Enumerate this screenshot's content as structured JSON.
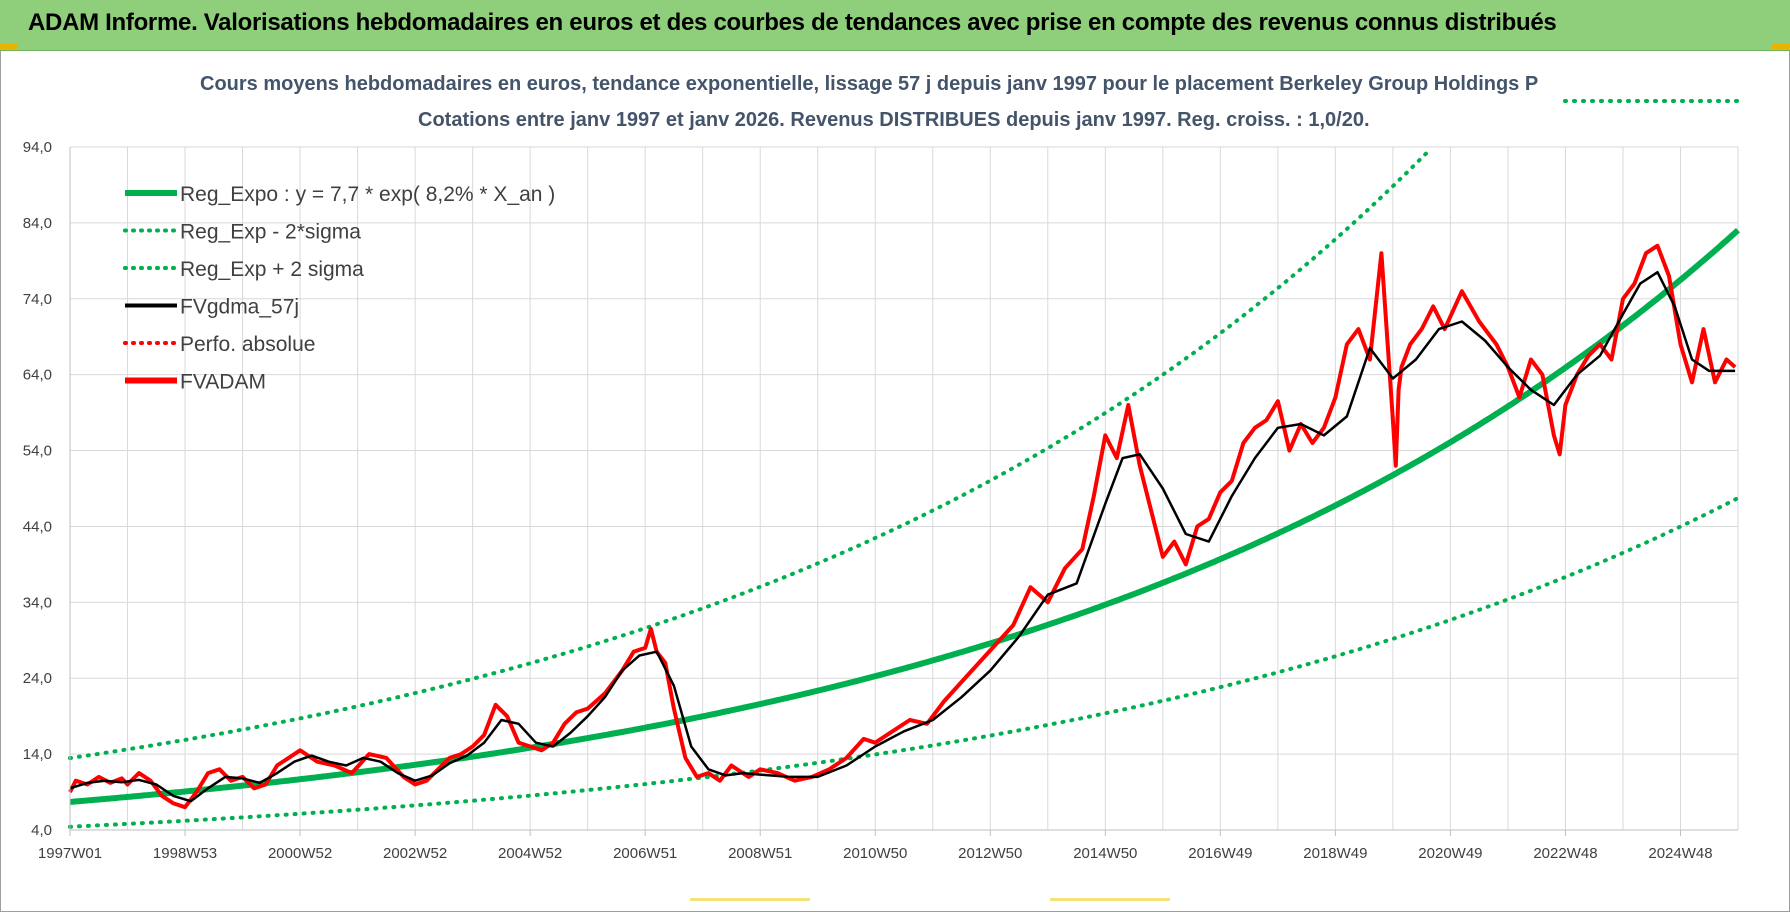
{
  "header": {
    "title": "ADAM Informe. Valorisations hebdomadaires en euros et des courbes de tendances avec prise en compte des revenus connus distribués"
  },
  "colors": {
    "header_bg": "#8fce7a",
    "reg_expo": "#00b050",
    "fvgdma": "#000000",
    "fvadam": "#ff0000",
    "title_text": "#44546a"
  },
  "chart_data": {
    "type": "line",
    "title_line1": "Cours moyens hebdomadaires en euros, tendance exponentielle, lissage 57 j depuis janv 1997  pour le placement Berkeley Group Holdings P",
    "title_line2": "Cotations entre janv 1997 et janv 2026. Revenus DISTRIBUES depuis janv 1997.  Reg. croiss. : 1,0/20.",
    "ylim": [
      4,
      94
    ],
    "yticks": [
      "4,0",
      "14,0",
      "24,0",
      "34,0",
      "44,0",
      "54,0",
      "64,0",
      "74,0",
      "84,0",
      "94,0"
    ],
    "xlim": [
      1997.0,
      2026.0
    ],
    "xtick_labels": [
      "1997W01",
      "1998W53",
      "2000W52",
      "2002W52",
      "2004W52",
      "2006W51",
      "2008W51",
      "2010W50",
      "2012W50",
      "2014W50",
      "2016W49",
      "2018W49",
      "2020W49",
      "2022W48",
      "2024W48"
    ],
    "xtick_years": [
      1997.0,
      1999.0,
      2001.0,
      2003.0,
      2005.0,
      2007.0,
      2009.0,
      2011.0,
      2013.0,
      2015.0,
      2017.0,
      2019.0,
      2021.0,
      2023.0,
      2025.0
    ],
    "grid": true,
    "legend_position": "top-left",
    "legend": [
      {
        "label": "Reg_Expo : y = 7,7 * exp( 8,2% *  X_an )",
        "style": "solid-thick",
        "color": "#00b050"
      },
      {
        "label": "Reg_Exp - 2*sigma",
        "style": "dotted",
        "color": "#00b050"
      },
      {
        "label": "Reg_Exp + 2 sigma",
        "style": "dotted",
        "color": "#00b050"
      },
      {
        "label": "FVgdma_57j",
        "style": "solid",
        "color": "#000000"
      },
      {
        "label": "Perfo. absolue",
        "style": "dotted",
        "color": "#ff0000"
      },
      {
        "label": "FVADAM",
        "style": "solid-thick",
        "color": "#ff0000"
      }
    ],
    "regression": {
      "a": 7.7,
      "rate": 0.082,
      "upper_factor": 1.75,
      "lower_factor": 0.575
    },
    "series": [
      {
        "name": "FVADAM",
        "x": [
          1997.0,
          1997.1,
          1997.3,
          1997.5,
          1997.7,
          1997.9,
          1998.0,
          1998.2,
          1998.4,
          1998.6,
          1998.8,
          1999.0,
          1999.2,
          1999.4,
          1999.6,
          1999.8,
          2000.0,
          2000.2,
          2000.4,
          2000.6,
          2000.8,
          2001.0,
          2001.3,
          2001.6,
          2001.9,
          2002.2,
          2002.5,
          2002.8,
          2003.0,
          2003.2,
          2003.4,
          2003.6,
          2003.8,
          2004.0,
          2004.2,
          2004.4,
          2004.6,
          2004.8,
          2005.0,
          2005.2,
          2005.4,
          2005.6,
          2005.8,
          2006.0,
          2006.3,
          2006.6,
          2006.8,
          2007.0,
          2007.1,
          2007.2,
          2007.35,
          2007.5,
          2007.7,
          2007.9,
          2008.1,
          2008.3,
          2008.5,
          2008.8,
          2009.0,
          2009.3,
          2009.6,
          2009.9,
          2010.2,
          2010.5,
          2010.8,
          2011.0,
          2011.3,
          2011.6,
          2011.9,
          2012.2,
          2012.5,
          2012.8,
          2013.1,
          2013.4,
          2013.7,
          2014.0,
          2014.3,
          2014.6,
          2014.8,
          2015.0,
          2015.2,
          2015.4,
          2015.6,
          2015.8,
          2016.0,
          2016.2,
          2016.4,
          2016.6,
          2016.8,
          2017.0,
          2017.2,
          2017.4,
          2017.6,
          2017.8,
          2018.0,
          2018.2,
          2018.4,
          2018.6,
          2018.8,
          2019.0,
          2019.2,
          2019.4,
          2019.6,
          2019.8,
          2020.0,
          2020.05,
          2020.1,
          2020.15,
          2020.3,
          2020.5,
          2020.7,
          2020.9,
          2021.2,
          2021.5,
          2021.8,
          2022.0,
          2022.2,
          2022.4,
          2022.6,
          2022.8,
          2022.9,
          2023.0,
          2023.2,
          2023.4,
          2023.6,
          2023.8,
          2024.0,
          2024.2,
          2024.4,
          2024.6,
          2024.8,
          2025.0,
          2025.2,
          2025.4,
          2025.6,
          2025.8,
          2025.95
        ],
        "values": [
          9.0,
          10.5,
          10.0,
          11.0,
          10.2,
          10.8,
          10.0,
          11.5,
          10.5,
          8.5,
          7.5,
          7.0,
          9.0,
          11.5,
          12.0,
          10.5,
          11.0,
          9.5,
          10.0,
          12.5,
          13.5,
          14.5,
          13.0,
          12.5,
          11.5,
          14.0,
          13.5,
          11.0,
          10.0,
          10.5,
          12.0,
          13.5,
          14.0,
          15.0,
          16.5,
          20.5,
          19.0,
          15.5,
          15.0,
          14.5,
          15.5,
          18.0,
          19.5,
          20.0,
          22.0,
          25.0,
          27.5,
          28.0,
          30.5,
          27.5,
          26.0,
          20.0,
          13.5,
          11.0,
          11.5,
          10.5,
          12.5,
          11.0,
          12.0,
          11.5,
          10.5,
          11.0,
          12.0,
          13.5,
          16.0,
          15.5,
          17.0,
          18.5,
          18.0,
          21.0,
          23.5,
          26.0,
          28.5,
          31.0,
          36.0,
          34.0,
          38.5,
          41.0,
          48.0,
          56.0,
          53.0,
          60.0,
          52.0,
          46.0,
          40.0,
          42.0,
          39.0,
          44.0,
          45.0,
          48.5,
          50.0,
          55.0,
          57.0,
          58.0,
          60.5,
          54.0,
          57.5,
          55.0,
          57.0,
          61.0,
          68.0,
          70.0,
          66.0,
          80.0,
          58.0,
          52.0,
          62.0,
          65.0,
          68.0,
          70.0,
          73.0,
          70.0,
          75.0,
          71.0,
          68.0,
          65.0,
          61.0,
          66.0,
          64.0,
          56.0,
          53.5,
          60.0,
          64.0,
          66.5,
          68.0,
          66.0,
          74.0,
          76.0,
          80.0,
          81.0,
          77.0,
          68.0,
          63.0,
          70.0,
          63.0,
          66.0,
          65.0
        ]
      },
      {
        "name": "FVgdma_57j",
        "x": [
          1997.0,
          1997.3,
          1997.6,
          1997.9,
          1998.2,
          1998.5,
          1998.8,
          1999.1,
          1999.4,
          1999.7,
          2000.0,
          2000.3,
          2000.6,
          2000.9,
          2001.2,
          2001.5,
          2001.8,
          2002.1,
          2002.4,
          2002.7,
          2003.0,
          2003.3,
          2003.6,
          2003.9,
          2004.2,
          2004.5,
          2004.8,
          2005.1,
          2005.4,
          2005.7,
          2006.0,
          2006.3,
          2006.6,
          2006.9,
          2007.2,
          2007.5,
          2007.8,
          2008.1,
          2008.4,
          2008.7,
          2009.0,
          2009.5,
          2010.0,
          2010.5,
          2011.0,
          2011.5,
          2012.0,
          2012.5,
          2013.0,
          2013.5,
          2014.0,
          2014.5,
          2015.0,
          2015.3,
          2015.6,
          2016.0,
          2016.4,
          2016.8,
          2017.2,
          2017.6,
          2018.0,
          2018.4,
          2018.8,
          2019.2,
          2019.6,
          2020.0,
          2020.4,
          2020.8,
          2021.2,
          2021.6,
          2022.0,
          2022.4,
          2022.8,
          2023.2,
          2023.6,
          2024.0,
          2024.3,
          2024.6,
          2024.9,
          2025.2,
          2025.5,
          2025.95
        ],
        "values": [
          9.5,
          10.2,
          10.5,
          10.3,
          10.6,
          10.0,
          8.5,
          7.8,
          9.5,
          11.0,
          10.8,
          10.2,
          11.5,
          13.0,
          13.8,
          13.0,
          12.5,
          13.5,
          13.0,
          11.5,
          10.5,
          11.2,
          12.8,
          13.8,
          15.5,
          18.5,
          18.0,
          15.5,
          15.0,
          16.8,
          19.0,
          21.5,
          25.0,
          27.0,
          27.5,
          23.0,
          15.0,
          12.0,
          11.2,
          11.5,
          11.3,
          11.0,
          11.0,
          12.5,
          15.0,
          17.0,
          18.5,
          21.5,
          25.0,
          29.5,
          35.0,
          36.5,
          47.0,
          53.0,
          53.5,
          49.0,
          43.0,
          42.0,
          48.0,
          53.0,
          57.0,
          57.5,
          56.0,
          58.5,
          67.5,
          63.5,
          66.0,
          70.0,
          71.0,
          68.5,
          65.0,
          62.0,
          60.0,
          64.0,
          66.5,
          72.0,
          76.0,
          77.5,
          73.0,
          66.0,
          64.5,
          64.5
        ]
      }
    ]
  }
}
